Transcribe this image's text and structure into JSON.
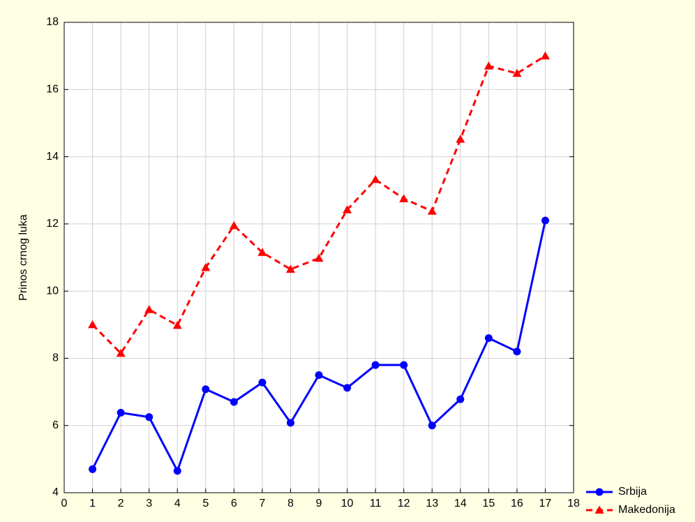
{
  "chart_data": {
    "type": "line",
    "ylabel": "Prinos crnog luka",
    "x": [
      1,
      2,
      3,
      4,
      5,
      6,
      7,
      8,
      9,
      10,
      11,
      12,
      13,
      14,
      15,
      16,
      17
    ],
    "xlim": [
      0,
      18
    ],
    "xticks": [
      0,
      1,
      2,
      3,
      4,
      5,
      6,
      7,
      8,
      9,
      10,
      11,
      12,
      13,
      14,
      15,
      16,
      17,
      18
    ],
    "ylim": [
      4,
      18
    ],
    "yticks": [
      4,
      6,
      8,
      10,
      12,
      14,
      16,
      18
    ],
    "grid": true,
    "legend": "bottom-right",
    "series": [
      {
        "name": "Srbija",
        "color": "#0000ff",
        "marker": "circle",
        "dash": "solid",
        "values": [
          4.7,
          6.38,
          6.25,
          4.65,
          7.08,
          6.7,
          7.28,
          6.08,
          7.5,
          7.12,
          7.8,
          7.8,
          6.0,
          6.78,
          8.6,
          8.2,
          12.1
        ]
      },
      {
        "name": "Makedonija",
        "color": "#ff0000",
        "marker": "triangle",
        "dash": "dashed",
        "values": [
          9.0,
          8.15,
          9.45,
          8.98,
          10.7,
          11.95,
          11.15,
          10.65,
          10.98,
          12.42,
          13.32,
          12.75,
          12.38,
          14.52,
          16.7,
          16.48,
          17.0
        ]
      }
    ]
  }
}
